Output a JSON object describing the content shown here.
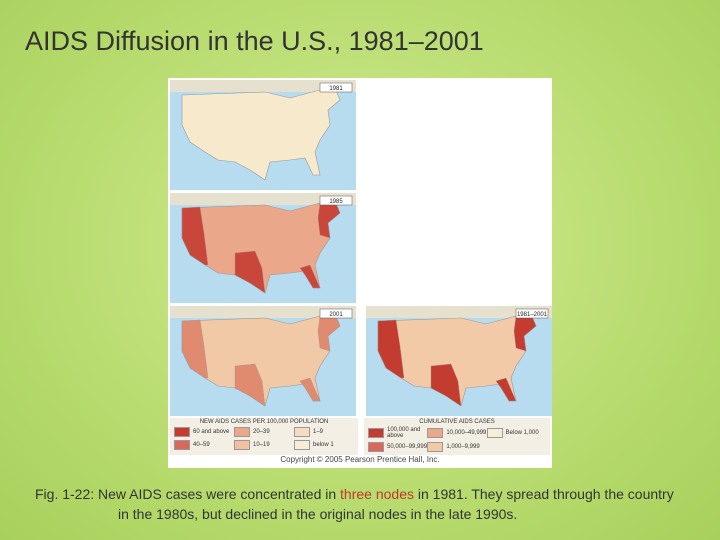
{
  "title": "AIDS Diffusion in the U.S., 1981–2001",
  "maps": [
    {
      "label": "1981",
      "fill": "#f6e9cc",
      "hot": "#f6e9cc"
    },
    {
      "label": "1985",
      "fill": "#eba78a",
      "hot": "#c9463a"
    },
    {
      "label": "2001",
      "fill": "#f2c9a6",
      "hot": "#e08a70"
    },
    {
      "label": "1981–2001",
      "fill": "#f2caa8",
      "hot": "#c43c30"
    }
  ],
  "legends": [
    {
      "title": "NEW AIDS CASES PER 100,000 POPULATION",
      "items": [
        {
          "label": "60 and above",
          "color": "#c43c30"
        },
        {
          "label": "20–39",
          "color": "#eba78a"
        },
        {
          "label": "1–9",
          "color": "#f6dcc0"
        },
        {
          "label": "40–59",
          "color": "#d8685a"
        },
        {
          "label": "10–19",
          "color": "#f2c0a0"
        },
        {
          "label": "below 1",
          "color": "#f8eed8"
        }
      ]
    },
    {
      "title": "CUMULATIVE AIDS CASES",
      "items": [
        {
          "label": "100,000 and above",
          "color": "#c43c30"
        },
        {
          "label": "10,000–49,999",
          "color": "#eba78a"
        },
        {
          "label": "Below 1,000",
          "color": "#f8eed8"
        },
        {
          "label": "50,000–99,999",
          "color": "#d8685a"
        },
        {
          "label": "1,000–9,999",
          "color": "#f2c9a6"
        }
      ]
    }
  ],
  "copyright": "Copyright © 2005 Pearson Prentice Hall, Inc.",
  "caption": {
    "before": "Fig. 1-22: New AIDS cases were concentrated in ",
    "highlight": "three nodes",
    "after": " in 1981. They spread through the country in the 1980s, but declined in the original nodes in the late 1990s."
  }
}
